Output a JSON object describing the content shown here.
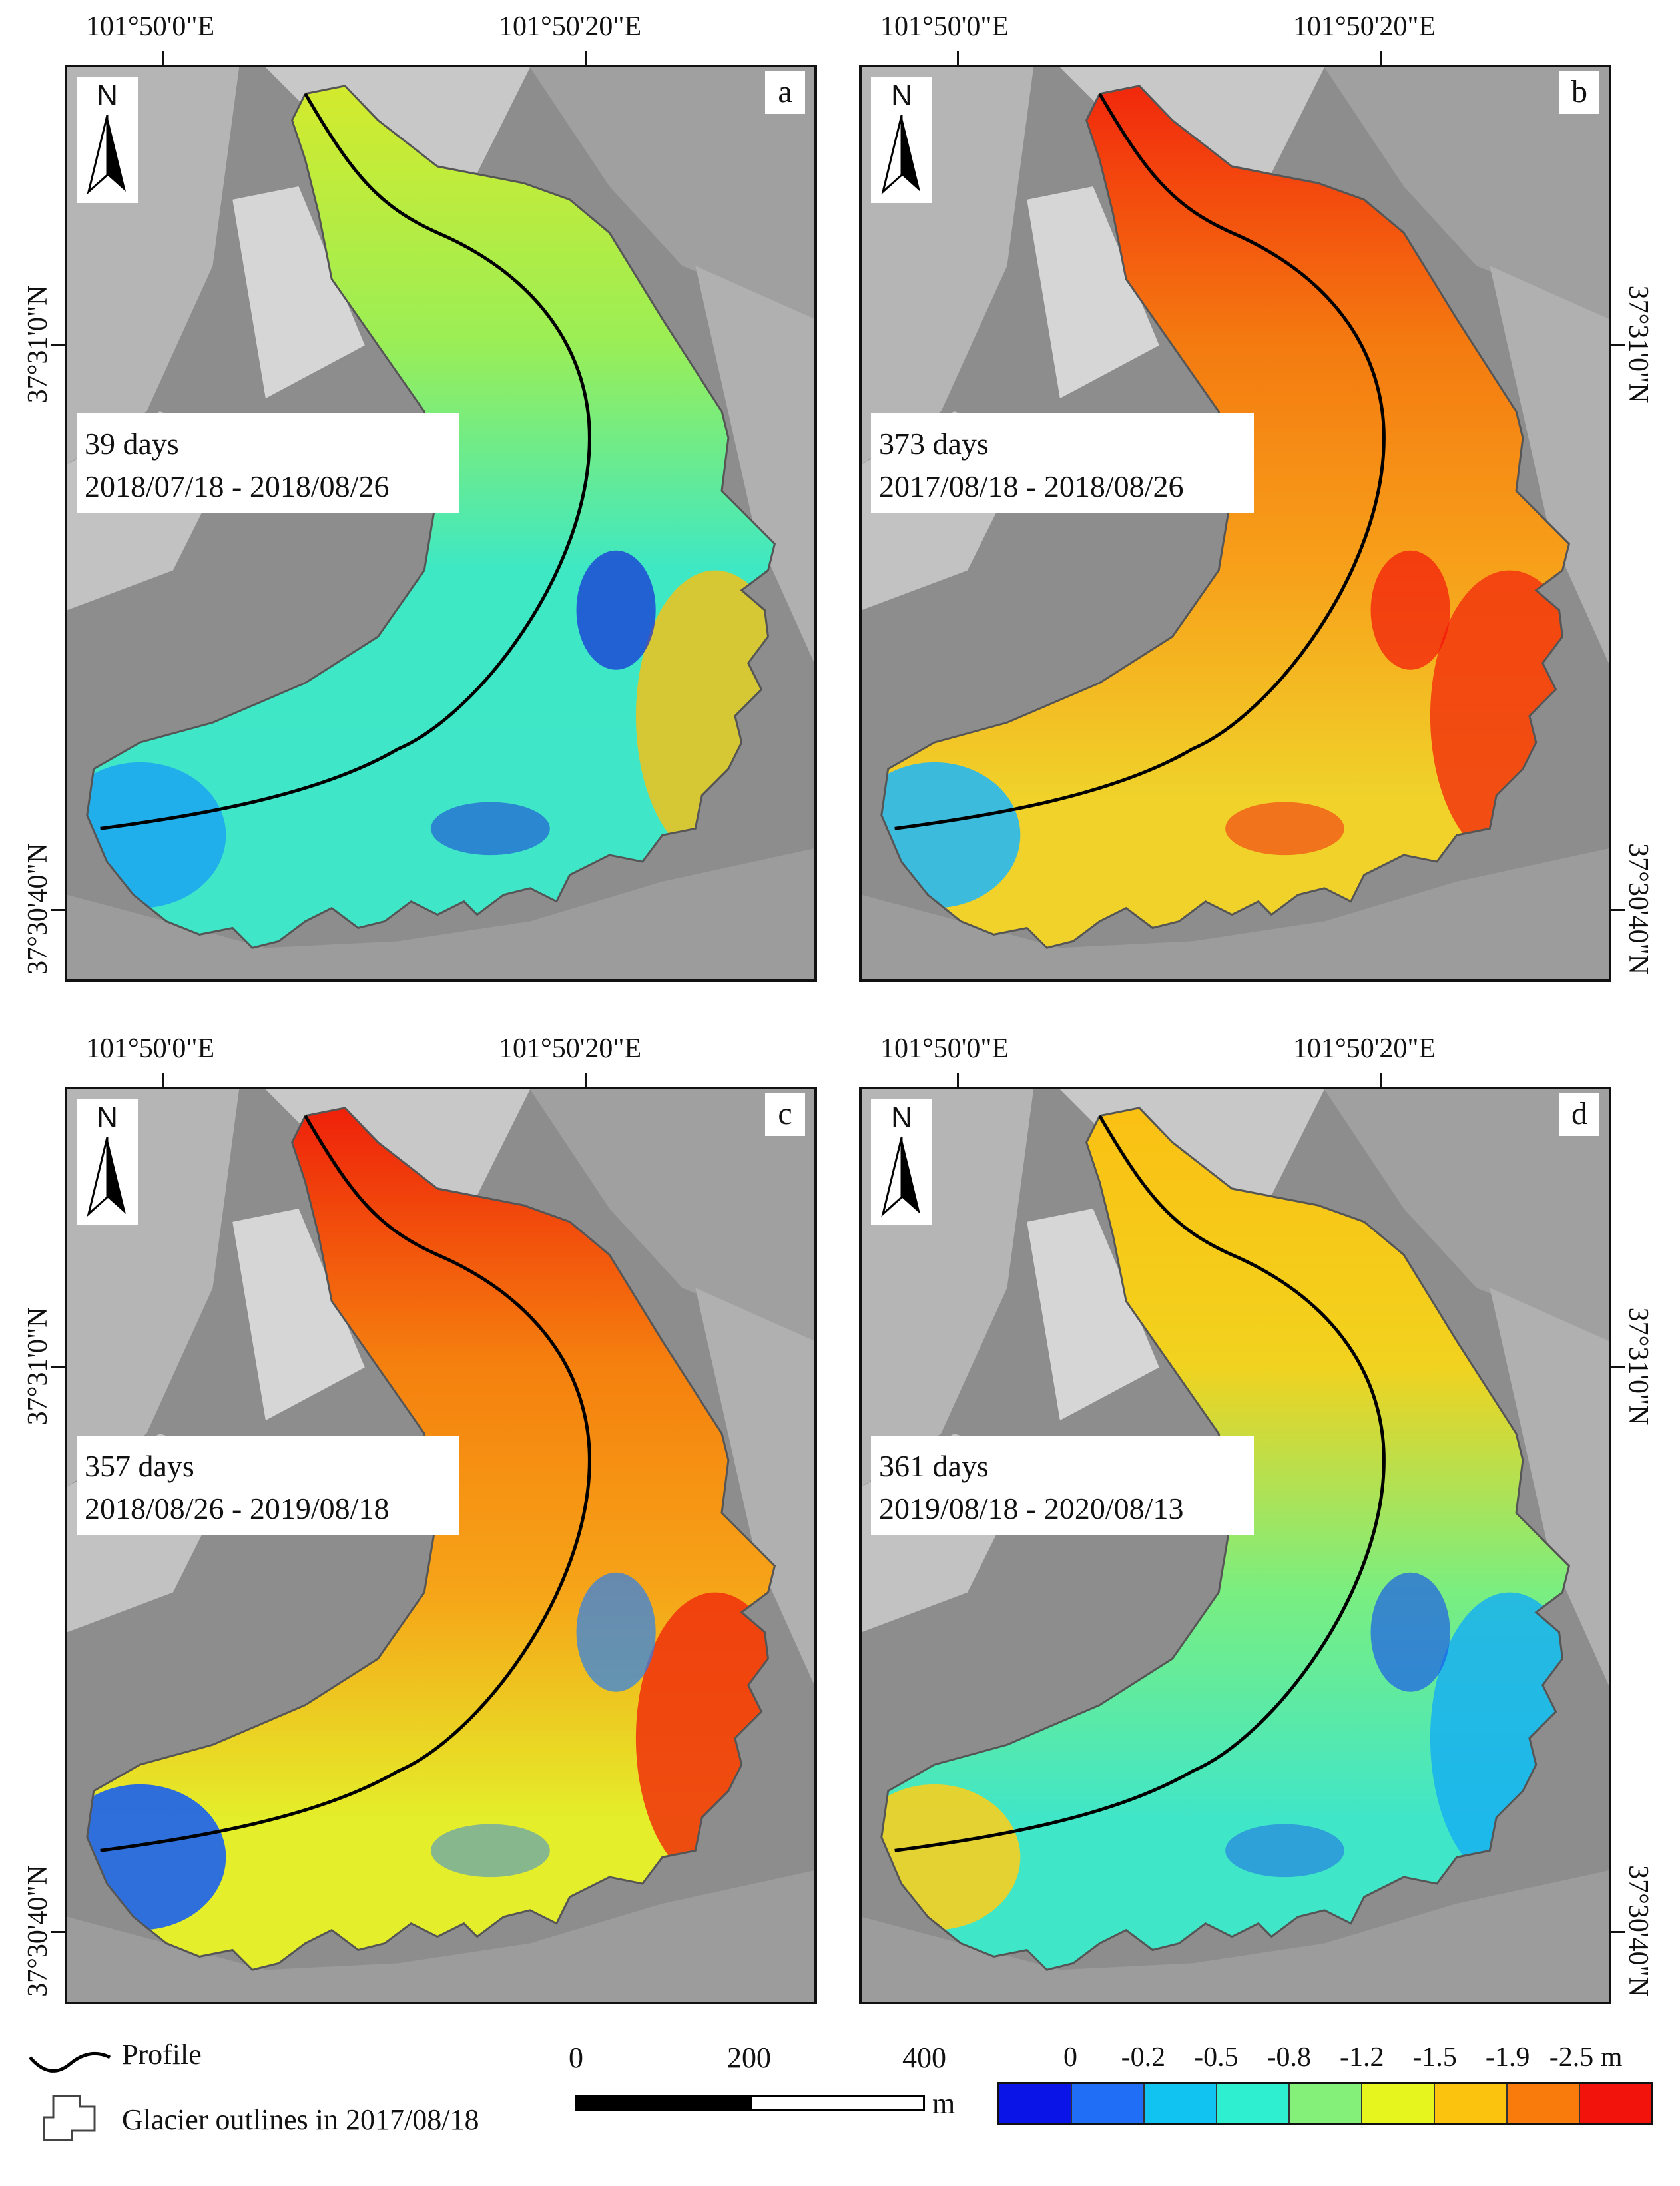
{
  "panels": [
    {
      "letter": "a",
      "days": "39 days",
      "dates": "2018/07/18 - 2018/08/26",
      "palette": "a"
    },
    {
      "letter": "b",
      "days": "373 days",
      "dates": "2017/08/18 - 2018/08/26",
      "palette": "b"
    },
    {
      "letter": "c",
      "days": "357 days",
      "dates": "2018/08/26 - 2019/08/18",
      "palette": "c"
    },
    {
      "letter": "d",
      "days": "361 days",
      "dates": "2019/08/18 - 2020/08/13",
      "palette": "d"
    }
  ],
  "north_label": "N",
  "lon_ticks": [
    "101°50'0\"E",
    "101°50'20\"E"
  ],
  "lat_ticks": [
    "37°31'0\"N",
    "37°30'40\"N"
  ],
  "legend": {
    "profile_label": "Profile",
    "outline_label": "Glacier outlines in 2017/08/18"
  },
  "scalebar": {
    "labels": [
      "0",
      "200",
      "400"
    ],
    "unit": "m"
  },
  "colorbar": {
    "tick_labels": [
      "0",
      "-0.2",
      "-0.5",
      "-0.8",
      "-1.2",
      "-1.5",
      "-1.9",
      "-2.5 m"
    ],
    "colors": [
      "#0a14e6",
      "#1f6ef5",
      "#10c3f0",
      "#2eefd0",
      "#84f07a",
      "#e6f51e",
      "#fbc30e",
      "#f97b0c",
      "#f2140c"
    ]
  },
  "palettes": {
    "a": {
      "head": "#d8ea2a",
      "upper": "#9bee55",
      "mid": "#3ee8c4",
      "lower": "#3fe6c8",
      "foot": "#1ea8f0",
      "right": "#f0c21a",
      "spot": "#1628d8"
    },
    "b": {
      "head": "#f2220c",
      "upper": "#f47a10",
      "mid": "#f7a01a",
      "lower": "#f0d22a",
      "foot": "#28b8f0",
      "right": "#f2360e",
      "spot": "#f2140c"
    },
    "c": {
      "head": "#ee1a0a",
      "upper": "#f5800e",
      "mid": "#f6a418",
      "lower": "#e4ee2a",
      "foot": "#1a60ee",
      "right": "#f0300c",
      "spot": "#2a80f0"
    },
    "d": {
      "head": "#fbbf12",
      "upper": "#f2d21e",
      "mid": "#7aee80",
      "lower": "#40e6c8",
      "foot": "#f5cf20",
      "right": "#18b0f0",
      "spot": "#1c5ce8"
    }
  }
}
